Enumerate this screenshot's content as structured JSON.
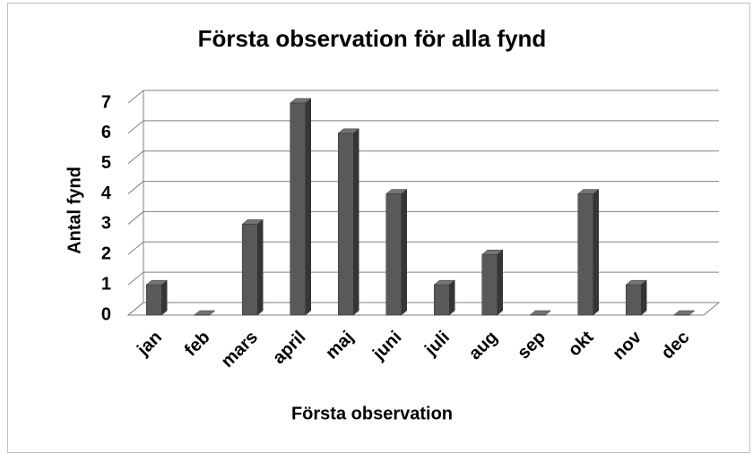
{
  "chart_data": {
    "type": "bar",
    "title": "Första observation för alla fynd",
    "xlabel": "Första observation",
    "ylabel": "Antal fynd",
    "categories": [
      "jan",
      "feb",
      "mars",
      "april",
      "maj",
      "juni",
      "juli",
      "aug",
      "sep",
      "okt",
      "nov",
      "dec"
    ],
    "values": [
      1,
      0,
      3,
      7,
      6,
      4,
      1,
      2,
      0,
      4,
      1,
      0
    ],
    "color": "#595959",
    "ylim": [
      0,
      7
    ],
    "yticks": [
      0,
      1,
      2,
      3,
      4,
      5,
      6,
      7
    ],
    "grid": true
  }
}
